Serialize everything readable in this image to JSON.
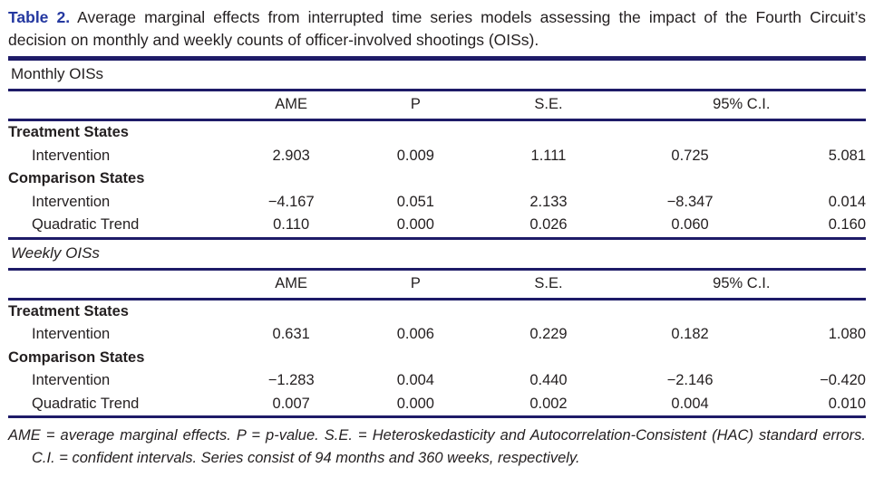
{
  "caption": {
    "label": "Table 2.",
    "text": "Average marginal effects from interrupted time series models assessing the impact of the Fourth Circuit’s decision on monthly and weekly counts of officer-involved shootings (OISs)."
  },
  "columns": {
    "ame": "AME",
    "p": "P",
    "se": "S.E.",
    "ci": "95% C.I."
  },
  "sections": [
    {
      "name": "Monthly OISs",
      "rows": [
        {
          "label": "Treatment States",
          "values": []
        },
        {
          "label": "Intervention",
          "values": [
            "2.903",
            "0.009",
            "1.111",
            "0.725",
            "5.081"
          ]
        },
        {
          "label": "Comparison States",
          "values": []
        },
        {
          "label": "Intervention",
          "values": [
            "−4.167",
            "0.051",
            "2.133",
            "−8.347",
            "0.014"
          ]
        },
        {
          "label": "Quadratic Trend",
          "values": [
            "0.110",
            "0.000",
            "0.026",
            "0.060",
            "0.160"
          ]
        }
      ]
    },
    {
      "name": "Weekly OISs",
      "rows": [
        {
          "label": "Treatment States",
          "values": []
        },
        {
          "label": "Intervention",
          "values": [
            "0.631",
            "0.006",
            "0.229",
            "0.182",
            "1.080"
          ]
        },
        {
          "label": "Comparison States",
          "values": []
        },
        {
          "label": "Intervention",
          "values": [
            "−1.283",
            "0.004",
            "0.440",
            "−2.146",
            "−0.420"
          ]
        },
        {
          "label": "Quadratic Trend",
          "values": [
            "0.007",
            "0.000",
            "0.002",
            "0.004",
            "0.010"
          ]
        }
      ]
    }
  ],
  "footnote": "AME = average marginal effects. P = p-value. S.E. = Heteroskedasticity and Autocorrelation-Consistent (HAC) standard errors. C.I. = confident intervals. Series consist of 94 months and 360 weeks, respectively.",
  "colors": {
    "rule": "#1e1b68",
    "accent": "#2438a0",
    "text": "#231f20"
  }
}
